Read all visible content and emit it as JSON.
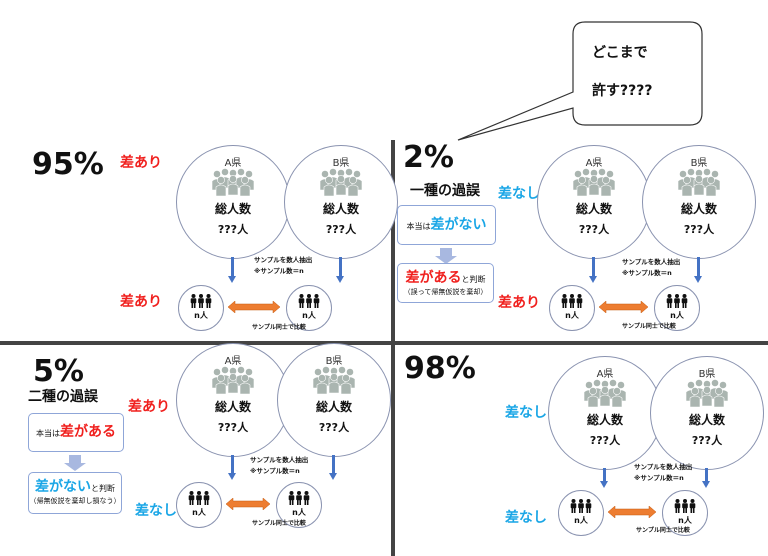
{
  "callout": {
    "line1": "どこまで",
    "line2": "許す????"
  },
  "common": {
    "pref_a": "A県",
    "pref_b": "B県",
    "total": "総人数",
    "unknown": "???人",
    "sample_line1": "サンプルを数人抽出",
    "sample_line2": "※サンプル数＝n",
    "n_people": "n人",
    "compare": "サンプル同士で比較"
  },
  "colors": {
    "red": "#f0201e",
    "cyan": "#1aa6e6",
    "blue_arrow": "#4472c4",
    "orange_arrow": "#ed7d31",
    "crowd": "#aab5b0"
  },
  "panels": [
    {
      "percent": "95%",
      "top_label": "差あり",
      "top_color": "red",
      "bottom_label": "差あり",
      "bottom_color": "red"
    },
    {
      "percent": "2%",
      "error_name": "一種の過誤",
      "top_label": "差なし",
      "top_color": "cyan",
      "bottom_label": "差あり",
      "bottom_color": "red",
      "truth_prefix": "本当は",
      "truth_value": "差がない",
      "truth_color": "cyan",
      "judge_value": "差がある",
      "judge_color": "red",
      "judge_suffix": "と判断",
      "judge_note": "（誤って帰無仮説を棄却）"
    },
    {
      "percent": "5%",
      "error_name": "二種の過誤",
      "top_label": "差あり",
      "top_color": "red",
      "bottom_label": "差なし",
      "bottom_color": "cyan",
      "truth_prefix": "本当は",
      "truth_value": "差がある",
      "truth_color": "red",
      "judge_value": "差がない",
      "judge_color": "cyan",
      "judge_suffix": "と判断",
      "judge_note": "（帰無仮説を棄却し損なう）"
    },
    {
      "percent": "98%",
      "top_label": "差なし",
      "top_color": "cyan",
      "bottom_label": "差なし",
      "bottom_color": "cyan"
    }
  ]
}
